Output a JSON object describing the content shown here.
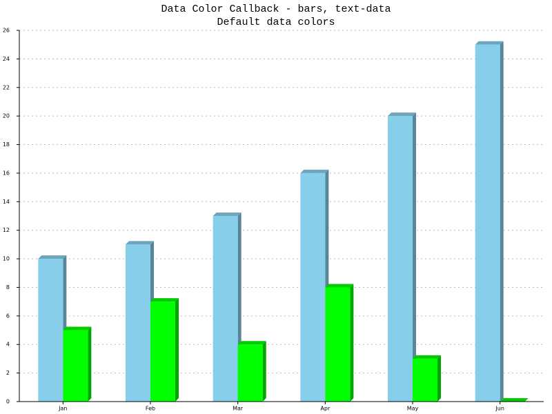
{
  "chart_data": {
    "type": "bar3d",
    "title": "Data Color Callback - bars, text-data",
    "subtitle": "Default data colors",
    "categories": [
      "Jan",
      "Feb",
      "Mar",
      "Apr",
      "May",
      "Jun"
    ],
    "series": [
      {
        "color": "#87ceeb",
        "values": [
          10,
          11,
          13,
          16,
          20,
          25
        ]
      },
      {
        "color": "#00ff00",
        "values": [
          5,
          7,
          4,
          8,
          3,
          0
        ]
      }
    ],
    "ylim": [
      0,
      26
    ],
    "yticks": [
      0,
      2,
      4,
      6,
      8,
      10,
      12,
      14,
      16,
      18,
      20,
      22,
      24,
      26
    ],
    "grid": true
  }
}
